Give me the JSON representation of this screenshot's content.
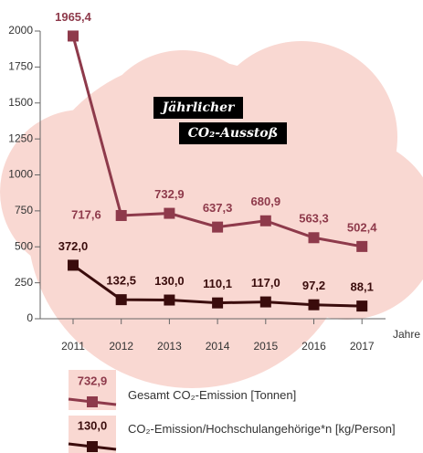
{
  "chart_data": {
    "type": "line",
    "title": [
      "Jährlicher",
      "CO₂-Ausstoß"
    ],
    "categories": [
      "2011",
      "2012",
      "2013",
      "2014",
      "2015",
      "2016",
      "2017"
    ],
    "x_label": "Jahre",
    "series": [
      {
        "name": "Gesamt CO₂-Emission [Tonnen]",
        "color": "#8e3a4b",
        "values": [
          1965.4,
          717.6,
          732.9,
          637.3,
          680.9,
          563.3,
          502.4
        ],
        "value_labels": [
          "1965,4",
          "717,6",
          "732,9",
          "637,3",
          "680,9",
          "563,3",
          "502,4"
        ]
      },
      {
        "name": "CO₂-Emission/Hochschulangehörige*n [kg/Person]",
        "color": "#3a0c0c",
        "values": [
          372.0,
          132.5,
          130.0,
          110.1,
          117.0,
          97.2,
          88.1
        ],
        "value_labels": [
          "372,0",
          "132,5",
          "130,0",
          "110,1",
          "117,0",
          "97,2",
          "88,1"
        ]
      }
    ],
    "ylim": [
      0,
      2000
    ],
    "yticks": [
      0,
      250,
      500,
      750,
      1000,
      1250,
      1500,
      1750,
      2000
    ]
  }
}
